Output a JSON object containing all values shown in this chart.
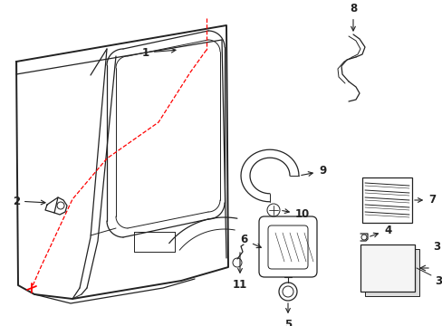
{
  "bg_color": "#ffffff",
  "line_color": "#222222",
  "red_color": "#ff0000",
  "figsize": [
    4.89,
    3.6
  ],
  "dpi": 100,
  "label_fontsize": 8.5
}
